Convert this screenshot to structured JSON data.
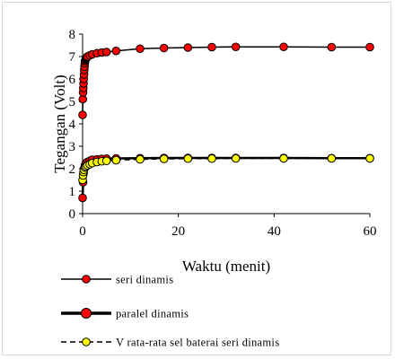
{
  "chart_data": {
    "type": "line",
    "title": "",
    "xlabel": "Waktu (menit)",
    "ylabel": "Tegangan (Volt)",
    "xlim": [
      0,
      60
    ],
    "ylim": [
      0,
      8
    ],
    "x_ticks": [
      0,
      20,
      40,
      60
    ],
    "y_ticks": [
      0,
      1,
      2,
      3,
      4,
      5,
      6,
      7,
      8
    ],
    "grid": false,
    "legend_position": "bottom",
    "series": [
      {
        "name": "seri dinamis",
        "color": "#ff0000",
        "line_color": "#000000",
        "line_style": "solid",
        "marker": "circle",
        "x": [
          0,
          0.05,
          0.1,
          0.15,
          0.2,
          0.25,
          0.3,
          0.35,
          0.4,
          0.45,
          0.5,
          0.6,
          0.7,
          0.8,
          0.9,
          1,
          1.5,
          2,
          3,
          4,
          5,
          7,
          12,
          17,
          22,
          27,
          32,
          42,
          52,
          60
        ],
        "y": [
          4.4,
          5.1,
          5.4,
          5.6,
          5.8,
          6.0,
          6.2,
          6.4,
          6.55,
          6.7,
          6.8,
          6.85,
          6.9,
          6.93,
          6.96,
          7.0,
          7.05,
          7.1,
          7.15,
          7.18,
          7.2,
          7.25,
          7.35,
          7.38,
          7.4,
          7.42,
          7.43,
          7.43,
          7.42,
          7.42
        ]
      },
      {
        "name": "paralel dinamis",
        "color": "#ff0000",
        "line_color": "#000000",
        "line_style": "solid",
        "marker": "circle",
        "x": [
          0,
          0.1,
          0.2,
          0.3,
          0.5,
          0.7,
          1,
          1.5,
          2,
          3,
          4,
          5,
          7,
          12,
          17,
          22,
          27,
          32,
          42,
          52,
          60
        ],
        "y": [
          0.7,
          1.4,
          1.8,
          2.0,
          2.15,
          2.25,
          2.3,
          2.35,
          2.4,
          2.42,
          2.44,
          2.45,
          2.46,
          2.47,
          2.48,
          2.48,
          2.48,
          2.48,
          2.48,
          2.47,
          2.47
        ]
      },
      {
        "name": "V rata-rata sel baterai seri dinamis",
        "color": "#ffff00",
        "line_color": "#000000",
        "line_style": "dashed",
        "marker": "circle",
        "x": [
          0,
          0.1,
          0.2,
          0.3,
          0.5,
          0.7,
          1,
          1.5,
          2,
          3,
          4,
          5,
          7,
          12,
          17,
          22,
          27,
          32,
          42,
          52,
          60
        ],
        "y": [
          1.5,
          1.7,
          1.85,
          1.95,
          2.05,
          2.1,
          2.15,
          2.2,
          2.25,
          2.3,
          2.33,
          2.35,
          2.38,
          2.42,
          2.44,
          2.45,
          2.45,
          2.46,
          2.46,
          2.46,
          2.46
        ]
      }
    ]
  }
}
